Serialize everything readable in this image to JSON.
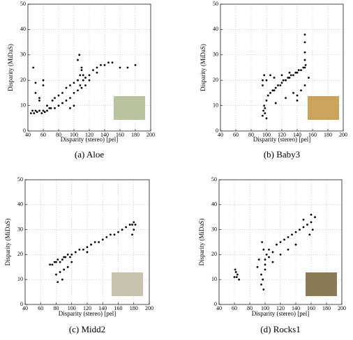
{
  "chart_data": [
    {
      "type": "scatter",
      "caption": "(a) Aloe",
      "xlabel": "Disparity (stereo) [pel]",
      "ylabel": "Disparity (MiDaS)",
      "color": "#000000",
      "grid": true,
      "xlim": [
        40,
        200
      ],
      "ylim": [
        0,
        50
      ],
      "xticks": [
        40,
        60,
        80,
        100,
        120,
        140,
        160,
        180,
        200
      ],
      "yticks": [
        0,
        10,
        20,
        30,
        40,
        50
      ],
      "x": [
        44,
        46,
        48,
        50,
        52,
        55,
        58,
        60,
        62,
        65,
        68,
        70,
        47,
        50,
        55,
        60,
        65,
        72,
        75,
        80,
        85,
        90,
        95,
        100,
        105,
        108,
        110,
        112,
        115,
        120,
        125,
        130,
        135,
        140,
        145,
        150,
        160,
        170,
        180,
        75,
        80,
        85,
        90,
        95,
        100,
        105,
        110,
        115,
        120,
        50,
        55,
        60,
        105,
        107,
        110,
        112,
        108,
        100,
        95,
        130
      ],
      "y": [
        7,
        8,
        7,
        8,
        7.5,
        8,
        7,
        8,
        7.5,
        8,
        9,
        9,
        25,
        15,
        12,
        18,
        10,
        12,
        13,
        14,
        15,
        17,
        18,
        19,
        20,
        22,
        24,
        20,
        21,
        22,
        24,
        25,
        26,
        26,
        27,
        27,
        25,
        25,
        26,
        9,
        10,
        11,
        12,
        13,
        15,
        16,
        17,
        18,
        20,
        19,
        13,
        20,
        28,
        30,
        25,
        22,
        18,
        10,
        9,
        23
      ]
    },
    {
      "type": "scatter",
      "caption": "(b) Baby3",
      "xlabel": "Disparity (stereo) [pel]",
      "ylabel": "Disparity (MiDaS)",
      "color": "#000000",
      "grid": true,
      "xlim": [
        40,
        200
      ],
      "ylim": [
        0,
        50
      ],
      "xticks": [
        40,
        60,
        80,
        100,
        120,
        140,
        160,
        180,
        200
      ],
      "yticks": [
        0,
        10,
        20,
        30,
        40,
        50
      ],
      "x": [
        95,
        96,
        97,
        98,
        95,
        97,
        100,
        102,
        105,
        108,
        110,
        112,
        115,
        118,
        120,
        122,
        125,
        128,
        130,
        132,
        135,
        138,
        140,
        142,
        145,
        148,
        150,
        150,
        150,
        150,
        150,
        151,
        100,
        105,
        110,
        120,
        130,
        140,
        145,
        150,
        155,
        95,
        98,
        100,
        112,
        125,
        135,
        140
      ],
      "y": [
        6,
        8,
        10,
        7,
        20,
        22,
        12,
        14,
        15,
        16,
        16,
        17,
        18,
        18,
        19,
        20,
        20,
        21,
        21,
        22,
        22,
        23,
        23,
        24,
        24,
        25,
        25,
        28,
        31,
        35,
        38,
        26,
        20,
        22,
        21,
        22,
        23,
        14,
        16,
        18,
        21,
        18,
        9,
        5,
        11,
        13,
        15,
        12
      ]
    },
    {
      "type": "scatter",
      "caption": "(c) Midd2",
      "xlabel": "Disparity (stereo) [pel]",
      "ylabel": "Disparity (MiDaS)",
      "color": "#000000",
      "grid": true,
      "xlim": [
        40,
        200
      ],
      "ylim": [
        0,
        50
      ],
      "xticks": [
        40,
        60,
        80,
        100,
        120,
        140,
        160,
        180,
        200
      ],
      "yticks": [
        0,
        10,
        20,
        30,
        40,
        50
      ],
      "x": [
        72,
        75,
        78,
        80,
        82,
        85,
        88,
        90,
        92,
        95,
        98,
        100,
        105,
        110,
        115,
        120,
        125,
        130,
        135,
        140,
        145,
        150,
        155,
        160,
        165,
        170,
        175,
        178,
        180,
        182,
        80,
        85,
        90,
        95,
        100,
        82,
        88,
        178,
        180,
        120
      ],
      "y": [
        16,
        16,
        17,
        17,
        18,
        17,
        18,
        19,
        19,
        20,
        19,
        20,
        21,
        22,
        22,
        23,
        24,
        25,
        25,
        26,
        27,
        28,
        28,
        29,
        30,
        31,
        32,
        32,
        33,
        32,
        12,
        13,
        14,
        15,
        17,
        9,
        10,
        28,
        30,
        21
      ]
    },
    {
      "type": "scatter",
      "caption": "(d) Rocks1",
      "xlabel": "Disparity (stereo) [pel]",
      "ylabel": "Disparity (MiDaS)",
      "color": "#000000",
      "grid": true,
      "xlim": [
        40,
        200
      ],
      "ylim": [
        0,
        50
      ],
      "xticks": [
        40,
        60,
        80,
        100,
        120,
        140,
        160,
        180,
        200
      ],
      "yticks": [
        0,
        10,
        20,
        30,
        40,
        50
      ],
      "x": [
        60,
        62,
        64,
        66,
        61,
        63,
        90,
        92,
        95,
        97,
        100,
        102,
        105,
        95,
        98,
        100,
        105,
        110,
        115,
        120,
        125,
        130,
        135,
        140,
        145,
        150,
        155,
        160,
        165,
        162,
        158,
        140,
        130,
        120,
        110,
        96,
        98,
        100,
        150,
        160
      ],
      "y": [
        11,
        13,
        12,
        10,
        14,
        11,
        15,
        18,
        12,
        10,
        16,
        20,
        22,
        8,
        6,
        14,
        19,
        21,
        24,
        25,
        26,
        27,
        28,
        29,
        30,
        31,
        32,
        33,
        35,
        30,
        28,
        24,
        22,
        20,
        17,
        25,
        22,
        18,
        34,
        36
      ]
    }
  ]
}
